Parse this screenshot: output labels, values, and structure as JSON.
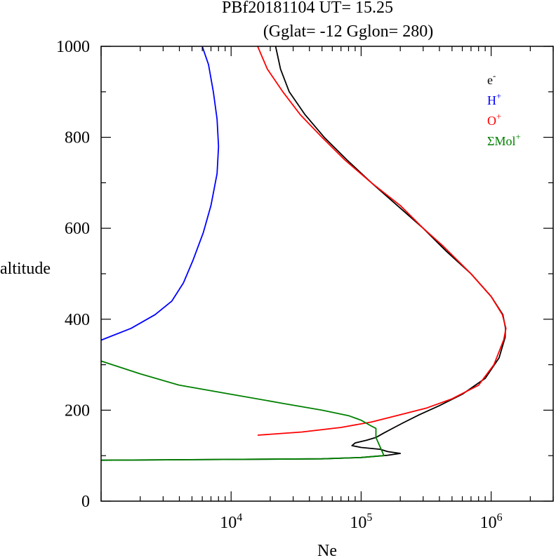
{
  "chart_data": {
    "type": "line",
    "title_line1": "PBf20181104   UT=  15.25",
    "title_line2": "(Gglat= -12   Gglon=  280)",
    "xlabel": "Ne",
    "ylabel": "altitude",
    "x_scale": "log",
    "xlim": [
      1000,
      3000000
    ],
    "ylim": [
      0,
      1000
    ],
    "y_ticks": [
      "0",
      "200",
      "400",
      "600",
      "800",
      "1000"
    ],
    "y_tick_values": [
      0,
      200,
      400,
      600,
      800,
      1000
    ],
    "x_tick_base": "10",
    "x_ticks": [
      {
        "value": 10000,
        "exp": "4"
      },
      {
        "value": 100000,
        "exp": "5"
      },
      {
        "value": 1000000,
        "exp": "6"
      }
    ],
    "legend_position": "top-right",
    "series": [
      {
        "name": "e",
        "sup": "-",
        "color": "#000000",
        "points": [
          [
            1000,
            90
          ],
          [
            50000,
            93
          ],
          [
            100000,
            96
          ],
          [
            160000,
            101
          ],
          [
            200000,
            105
          ],
          [
            160000,
            109
          ],
          [
            140000,
            114
          ],
          [
            100000,
            118
          ],
          [
            85000,
            122
          ],
          [
            90000,
            128
          ],
          [
            110000,
            134
          ],
          [
            130000,
            140
          ],
          [
            150000,
            150
          ],
          [
            180000,
            162
          ],
          [
            210000,
            172
          ],
          [
            280000,
            190
          ],
          [
            400000,
            210
          ],
          [
            600000,
            235
          ],
          [
            900000,
            270
          ],
          [
            1150000,
            315
          ],
          [
            1280000,
            360
          ],
          [
            1290000,
            380
          ],
          [
            1230000,
            410
          ],
          [
            1000000,
            450
          ],
          [
            700000,
            500
          ],
          [
            450000,
            550
          ],
          [
            300000,
            600
          ],
          [
            190000,
            650
          ],
          [
            120000,
            700
          ],
          [
            78000,
            750
          ],
          [
            52000,
            800
          ],
          [
            37000,
            850
          ],
          [
            28000,
            900
          ],
          [
            24000,
            950
          ],
          [
            22000,
            1000
          ]
        ]
      },
      {
        "name": "H",
        "sup": "+",
        "color": "#0000ff",
        "points": [
          [
            1000,
            354
          ],
          [
            1700,
            380
          ],
          [
            2600,
            410
          ],
          [
            3500,
            440
          ],
          [
            4300,
            480
          ],
          [
            5100,
            530
          ],
          [
            6100,
            590
          ],
          [
            7000,
            650
          ],
          [
            7800,
            720
          ],
          [
            8000,
            780
          ],
          [
            7800,
            840
          ],
          [
            7300,
            900
          ],
          [
            6700,
            960
          ],
          [
            6000,
            1000
          ]
        ]
      },
      {
        "name": "O",
        "sup": "+",
        "color": "#ff0000",
        "points": [
          [
            16000,
            145
          ],
          [
            35000,
            152
          ],
          [
            70000,
            162
          ],
          [
            120000,
            174
          ],
          [
            200000,
            190
          ],
          [
            320000,
            205
          ],
          [
            500000,
            225
          ],
          [
            800000,
            255
          ],
          [
            1050000,
            300
          ],
          [
            1250000,
            355
          ],
          [
            1300000,
            380
          ],
          [
            1220000,
            410
          ],
          [
            1000000,
            450
          ],
          [
            700000,
            500
          ],
          [
            430000,
            560
          ],
          [
            300000,
            600
          ],
          [
            200000,
            650
          ],
          [
            120000,
            700
          ],
          [
            75000,
            750
          ],
          [
            50000,
            800
          ],
          [
            34000,
            850
          ],
          [
            25000,
            900
          ],
          [
            19000,
            950
          ],
          [
            16000,
            1000
          ]
        ]
      },
      {
        "name": "ΣMol",
        "sup": "+",
        "color": "#008000",
        "points": [
          [
            1000,
            90
          ],
          [
            50000,
            93
          ],
          [
            100000,
            96
          ],
          [
            150000,
            100
          ],
          [
            130000,
            140
          ],
          [
            130000,
            160
          ],
          [
            120000,
            165
          ],
          [
            100000,
            178
          ],
          [
            80000,
            188
          ],
          [
            50000,
            200
          ],
          [
            25000,
            215
          ],
          [
            10000,
            235
          ],
          [
            4000,
            255
          ],
          [
            2000,
            280
          ],
          [
            1000,
            308
          ]
        ]
      }
    ]
  }
}
